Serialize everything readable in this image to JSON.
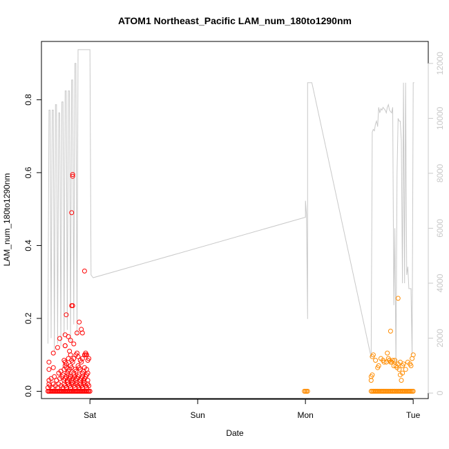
{
  "chart_data": {
    "type": "scatter",
    "title": "ATOM1 Northeast_Pacific LAM_num_180to1290nm",
    "xlabel": "Date",
    "ylabel": "LAM_num_180to1290nm",
    "xlim": [
      -0.45,
      3.14
    ],
    "ylim": [
      -0.02,
      0.96
    ],
    "y2lim": [
      -200,
      12800
    ],
    "x_ticks": [
      {
        "value": 0,
        "label": "Sat"
      },
      {
        "value": 1,
        "label": "Sun"
      },
      {
        "value": 2,
        "label": "Mon"
      },
      {
        "value": 3,
        "label": "Tue"
      }
    ],
    "y_ticks": [
      {
        "value": 0.0,
        "label": "0.0"
      },
      {
        "value": 0.2,
        "label": "0.2"
      },
      {
        "value": 0.4,
        "label": "0.4"
      },
      {
        "value": 0.6,
        "label": "0.6"
      },
      {
        "value": 0.8,
        "label": "0.8"
      }
    ],
    "y2_ticks": [
      {
        "value": 0,
        "label": "0"
      },
      {
        "value": 2000,
        "label": "2000"
      },
      {
        "value": 4000,
        "label": "4000"
      },
      {
        "value": 6000,
        "label": "6000"
      },
      {
        "value": 8000,
        "label": "8000"
      },
      {
        "value": 10000,
        "label": "10000"
      },
      {
        "value": 12000,
        "label": "12000"
      }
    ],
    "colors": {
      "series1": "#ff0000",
      "series2": "#ff8c00",
      "line": "#c8c8c8",
      "axis": "#000000",
      "right_axis": "#c8c8c8"
    },
    "grid": false,
    "legend": "none",
    "series": [
      {
        "style": "open-circles",
        "color": "#ff0000",
        "x": [
          -0.39,
          -0.38,
          -0.37,
          -0.36,
          -0.35,
          -0.34,
          -0.33,
          -0.32,
          -0.31,
          -0.3,
          -0.29,
          -0.28,
          -0.27,
          -0.26,
          -0.25,
          -0.24,
          -0.23,
          -0.22,
          -0.21,
          -0.2,
          -0.19,
          -0.18,
          -0.17,
          -0.16,
          -0.15,
          -0.14,
          -0.13,
          -0.12,
          -0.11,
          -0.1,
          -0.09,
          -0.08,
          -0.07,
          -0.06,
          -0.05,
          -0.04,
          -0.03,
          -0.02,
          -0.01,
          0.0,
          -0.39,
          -0.38,
          -0.37,
          -0.35,
          -0.34,
          -0.32,
          -0.3,
          -0.29,
          -0.27,
          -0.25,
          -0.24,
          -0.23,
          -0.22,
          -0.21,
          -0.2,
          -0.19,
          -0.18,
          -0.17,
          -0.16,
          -0.15,
          -0.14,
          -0.13,
          -0.12,
          -0.11,
          -0.1,
          -0.09,
          -0.08,
          -0.07,
          -0.06,
          -0.05,
          -0.04,
          -0.03,
          -0.02,
          -0.01,
          -0.38,
          -0.36,
          -0.33,
          -0.31,
          -0.28,
          -0.26,
          -0.25,
          -0.24,
          -0.23,
          -0.22,
          -0.21,
          -0.2,
          -0.19,
          -0.18,
          -0.17,
          -0.16,
          -0.15,
          -0.14,
          -0.13,
          -0.12,
          -0.11,
          -0.1,
          -0.09,
          -0.08,
          -0.07,
          -0.06,
          -0.05,
          -0.04,
          -0.03,
          -0.02,
          -0.38,
          -0.34,
          -0.29,
          -0.27,
          -0.24,
          -0.23,
          -0.22,
          -0.21,
          -0.2,
          -0.19,
          -0.18,
          -0.17,
          -0.15,
          -0.14,
          -0.13,
          -0.11,
          -0.1,
          -0.09,
          -0.07,
          -0.06,
          -0.05,
          -0.03,
          -0.02,
          -0.38,
          -0.34,
          -0.3,
          -0.28,
          -0.24,
          -0.23,
          -0.22,
          -0.2,
          -0.19,
          -0.18,
          -0.17,
          -0.16,
          -0.15,
          -0.13,
          -0.12,
          -0.11,
          -0.09,
          -0.08,
          -0.07,
          -0.05,
          -0.04,
          -0.03,
          -0.02,
          -0.01,
          -0.22,
          -0.16,
          -0.16,
          -0.17,
          -0.23,
          -0.23,
          -0.17,
          -0.16,
          -0.18,
          -0.07,
          -0.08,
          -0.2,
          -0.23,
          -0.15,
          -0.1,
          -0.12,
          -0.05,
          -0.04
        ],
        "y": [
          0,
          0,
          0,
          0,
          0,
          0,
          0,
          0,
          0,
          0,
          0,
          0,
          0,
          0,
          0,
          0,
          0,
          0,
          0,
          0,
          0,
          0,
          0,
          0,
          0,
          0,
          0,
          0,
          0,
          0,
          0,
          0,
          0,
          0,
          0,
          0,
          0,
          0,
          0,
          0,
          0.01,
          0.02,
          0.015,
          0.01,
          0.02,
          0.015,
          0.01,
          0.02,
          0.015,
          0.01,
          0.02,
          0.015,
          0.01,
          0.025,
          0.02,
          0.015,
          0.01,
          0.02,
          0.025,
          0.015,
          0.01,
          0.02,
          0.025,
          0.015,
          0.01,
          0.02,
          0.015,
          0.01,
          0.02,
          0.025,
          0.015,
          0.01,
          0.02,
          0.015,
          0.03,
          0.035,
          0.04,
          0.03,
          0.035,
          0.04,
          0.045,
          0.03,
          0.035,
          0.04,
          0.03,
          0.045,
          0.035,
          0.04,
          0.03,
          0.035,
          0.045,
          0.04,
          0.03,
          0.035,
          0.04,
          0.045,
          0.03,
          0.035,
          0.04,
          0.03,
          0.035,
          0.04,
          0.045,
          0.03,
          0.06,
          0.065,
          0.05,
          0.055,
          0.06,
          0.07,
          0.065,
          0.05,
          0.055,
          0.06,
          0.07,
          0.065,
          0.05,
          0.06,
          0.055,
          0.07,
          0.065,
          0.06,
          0.05,
          0.055,
          0.065,
          0.06,
          0.05,
          0.08,
          0.105,
          0.12,
          0.145,
          0.085,
          0.08,
          0.075,
          0.09,
          0.11,
          0.1,
          0.085,
          0.08,
          0.09,
          0.1,
          0.105,
          0.095,
          0.085,
          0.08,
          0.09,
          0.1,
          0.105,
          0.1,
          0.085,
          0.09,
          0.21,
          0.59,
          0.595,
          0.49,
          0.155,
          0.125,
          0.235,
          0.235,
          0.14,
          0.16,
          0.17,
          0.15,
          0.125,
          0.13,
          0.19,
          0.16,
          0.33,
          0.1
        ],
        "note_excluded": false
      },
      {
        "style": "open-circles",
        "color": "#ff8c00",
        "x": [
          1.99,
          2.0,
          2.01,
          2.02,
          2.61,
          2.62,
          2.63,
          2.64,
          2.65,
          2.66,
          2.67,
          2.68,
          2.69,
          2.7,
          2.71,
          2.72,
          2.73,
          2.74,
          2.75,
          2.76,
          2.77,
          2.78,
          2.79,
          2.8,
          2.81,
          2.82,
          2.83,
          2.84,
          2.85,
          2.86,
          2.87,
          2.88,
          2.89,
          2.9,
          2.91,
          2.92,
          2.93,
          2.94,
          2.95,
          2.96,
          2.97,
          2.98,
          2.99,
          3.0,
          2.61,
          2.61,
          2.62,
          2.62,
          2.63,
          2.65,
          2.67,
          2.68,
          2.7,
          2.72,
          2.73,
          2.75,
          2.76,
          2.77,
          2.78,
          2.79,
          2.8,
          2.81,
          2.82,
          2.83,
          2.84,
          2.85,
          2.86,
          2.87,
          2.88,
          2.89,
          2.9,
          2.91,
          2.93,
          2.95,
          2.97,
          2.98,
          2.99,
          3.0,
          2.79,
          2.86,
          2.88,
          2.9,
          2.78
        ],
        "y": [
          0,
          0,
          0,
          0,
          0,
          0,
          0,
          0,
          0,
          0,
          0,
          0,
          0,
          0,
          0,
          0,
          0,
          0,
          0,
          0,
          0,
          0,
          0,
          0,
          0,
          0,
          0,
          0,
          0,
          0,
          0,
          0,
          0,
          0,
          0,
          0,
          0,
          0,
          0,
          0,
          0,
          0,
          0,
          0,
          0.03,
          0.04,
          0.045,
          0.095,
          0.1,
          0.085,
          0.065,
          0.07,
          0.09,
          0.085,
          0.08,
          0.08,
          0.105,
          0.09,
          0.085,
          0.08,
          0.08,
          0.085,
          0.07,
          0.085,
          0.07,
          0.065,
          0.075,
          0.06,
          0.045,
          0.03,
          0.05,
          0.075,
          0.06,
          0.08,
          0.075,
          0.07,
          0.09,
          0.1,
          0.165,
          0.255,
          0.08,
          0.07,
          0.085
        ]
      }
    ],
    "line_series": {
      "axis": "right",
      "color": "#c8c8c8",
      "x": [
        -0.39,
        -0.38,
        -0.37,
        -0.36,
        -0.35,
        -0.34,
        -0.33,
        -0.32,
        -0.31,
        -0.3,
        -0.29,
        -0.28,
        -0.27,
        -0.26,
        -0.25,
        -0.24,
        -0.23,
        -0.22,
        -0.21,
        -0.2,
        -0.19,
        -0.18,
        -0.17,
        -0.16,
        -0.15,
        -0.14,
        -0.13,
        -0.12,
        -0.11,
        -0.1,
        -0.09,
        -0.08,
        -0.07,
        -0.06,
        -0.05,
        -0.04,
        -0.03,
        -0.02,
        -0.01,
        0.0,
        0.01,
        0.02,
        0.03,
        2.0,
        2.0,
        2.01,
        2.02,
        2.02,
        2.02,
        2.03,
        2.04,
        2.05,
        2.06,
        2.61,
        2.62,
        2.63,
        2.64,
        2.65,
        2.66,
        2.67,
        2.68,
        2.69,
        2.7,
        2.71,
        2.72,
        2.73,
        2.74,
        2.75,
        2.76,
        2.77,
        2.78,
        2.79,
        2.8,
        2.81,
        2.82,
        2.83,
        2.84,
        2.85,
        2.86,
        2.87,
        2.88,
        2.89,
        2.9,
        2.91,
        2.92,
        2.93,
        2.94,
        2.95,
        2.96,
        2.97,
        2.98,
        2.99,
        3.0,
        3.01
      ],
      "y": [
        1800,
        10300,
        10300,
        2000,
        10300,
        10300,
        1500,
        10500,
        10500,
        1800,
        10200,
        10200,
        1700,
        10600,
        10600,
        2100,
        11000,
        11000,
        2300,
        11000,
        11000,
        1900,
        11400,
        11400,
        2500,
        12000,
        12000,
        2100,
        12500,
        12500,
        12500,
        12500,
        12500,
        12500,
        12500,
        12500,
        12500,
        12500,
        12500,
        12500,
        4300,
        4250,
        4200,
        6400,
        7000,
        6500,
        2700,
        11300,
        11300,
        11300,
        11300,
        11300,
        11300,
        1300,
        9500,
        9600,
        9550,
        9800,
        9900,
        9700,
        10400,
        10200,
        10350,
        10300,
        10400,
        10350,
        10300,
        10200,
        10400,
        10500,
        10300,
        10250,
        10200,
        10400,
        3200,
        6000,
        1000,
        8000,
        10000,
        9900,
        9900,
        9200,
        4000,
        11300,
        4000,
        11300,
        4300,
        4600,
        3800,
        3800,
        3800,
        1400,
        11300,
        11300
      ]
    }
  }
}
